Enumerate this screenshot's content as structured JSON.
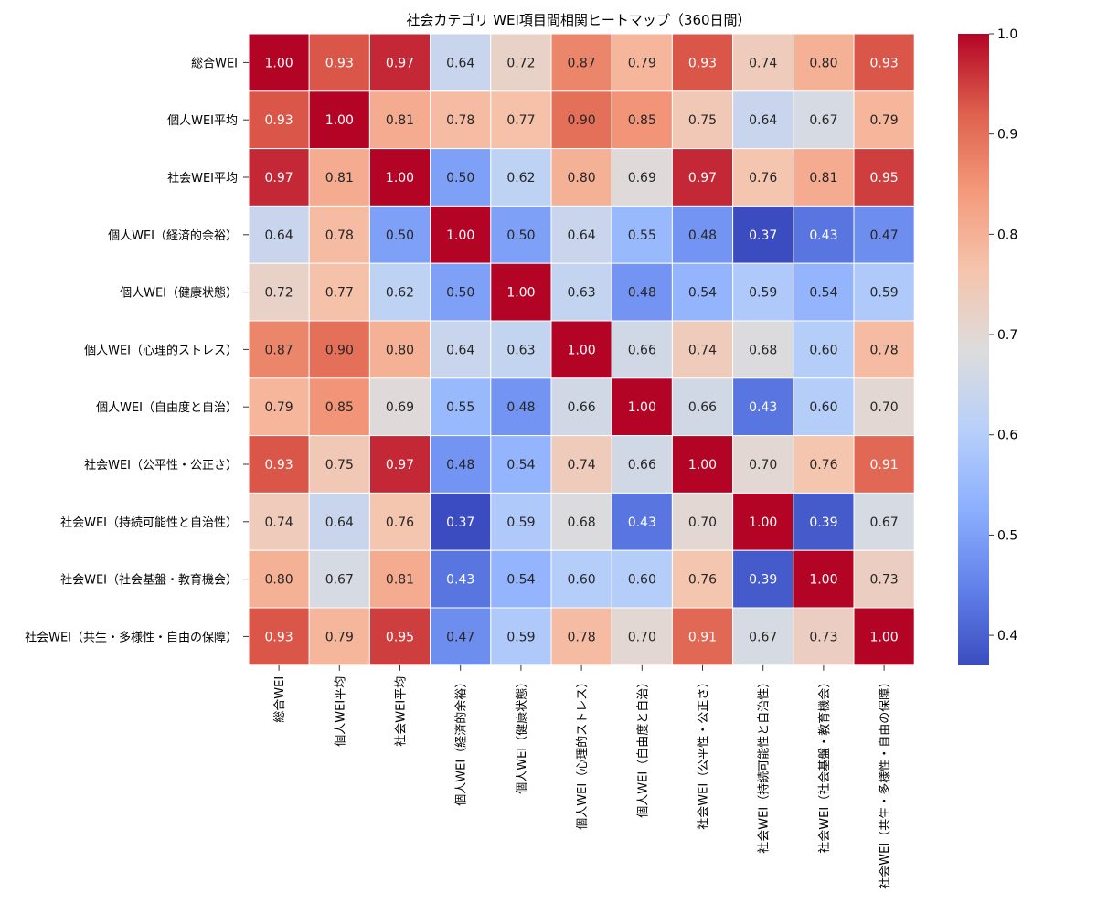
{
  "chart_data": {
    "type": "heatmap",
    "title": "社会カテゴリ WEI項目間相関ヒートマップ（360日間）",
    "colormap": "coolwarm",
    "vmin": 0.37,
    "vmax": 1.0,
    "colorbar_ticks": [
      0.4,
      0.5,
      0.6,
      0.7,
      0.8,
      0.9,
      1.0
    ],
    "labels": [
      "総合WEI",
      "個人WEI平均",
      "社会WEI平均",
      "個人WEI（経済的余裕）",
      "個人WEI（健康状態）",
      "個人WEI（心理的ストレス）",
      "個人WEI（自由度と自治）",
      "社会WEI（公平性・公正さ）",
      "社会WEI（持続可能性と自治性）",
      "社会WEI（社会基盤・教育機会）",
      "社会WEI（共生・多様性・自由の保障）"
    ],
    "matrix": [
      [
        1.0,
        0.93,
        0.97,
        0.64,
        0.72,
        0.87,
        0.79,
        0.93,
        0.74,
        0.8,
        0.93
      ],
      [
        0.93,
        1.0,
        0.81,
        0.78,
        0.77,
        0.9,
        0.85,
        0.75,
        0.64,
        0.67,
        0.79
      ],
      [
        0.97,
        0.81,
        1.0,
        0.5,
        0.62,
        0.8,
        0.69,
        0.97,
        0.76,
        0.81,
        0.95
      ],
      [
        0.64,
        0.78,
        0.5,
        1.0,
        0.5,
        0.64,
        0.55,
        0.48,
        0.37,
        0.43,
        0.47
      ],
      [
        0.72,
        0.77,
        0.62,
        0.5,
        1.0,
        0.63,
        0.48,
        0.54,
        0.59,
        0.54,
        0.59
      ],
      [
        0.87,
        0.9,
        0.8,
        0.64,
        0.63,
        1.0,
        0.66,
        0.74,
        0.68,
        0.6,
        0.78
      ],
      [
        0.79,
        0.85,
        0.69,
        0.55,
        0.48,
        0.66,
        1.0,
        0.66,
        0.43,
        0.6,
        0.7
      ],
      [
        0.93,
        0.75,
        0.97,
        0.48,
        0.54,
        0.74,
        0.66,
        1.0,
        0.7,
        0.76,
        0.91
      ],
      [
        0.74,
        0.64,
        0.76,
        0.37,
        0.59,
        0.68,
        0.43,
        0.7,
        1.0,
        0.39,
        0.67
      ],
      [
        0.8,
        0.67,
        0.81,
        0.43,
        0.54,
        0.6,
        0.6,
        0.76,
        0.39,
        1.0,
        0.73
      ],
      [
        0.93,
        0.79,
        0.95,
        0.47,
        0.59,
        0.78,
        0.7,
        0.91,
        0.67,
        0.73,
        1.0
      ]
    ]
  }
}
